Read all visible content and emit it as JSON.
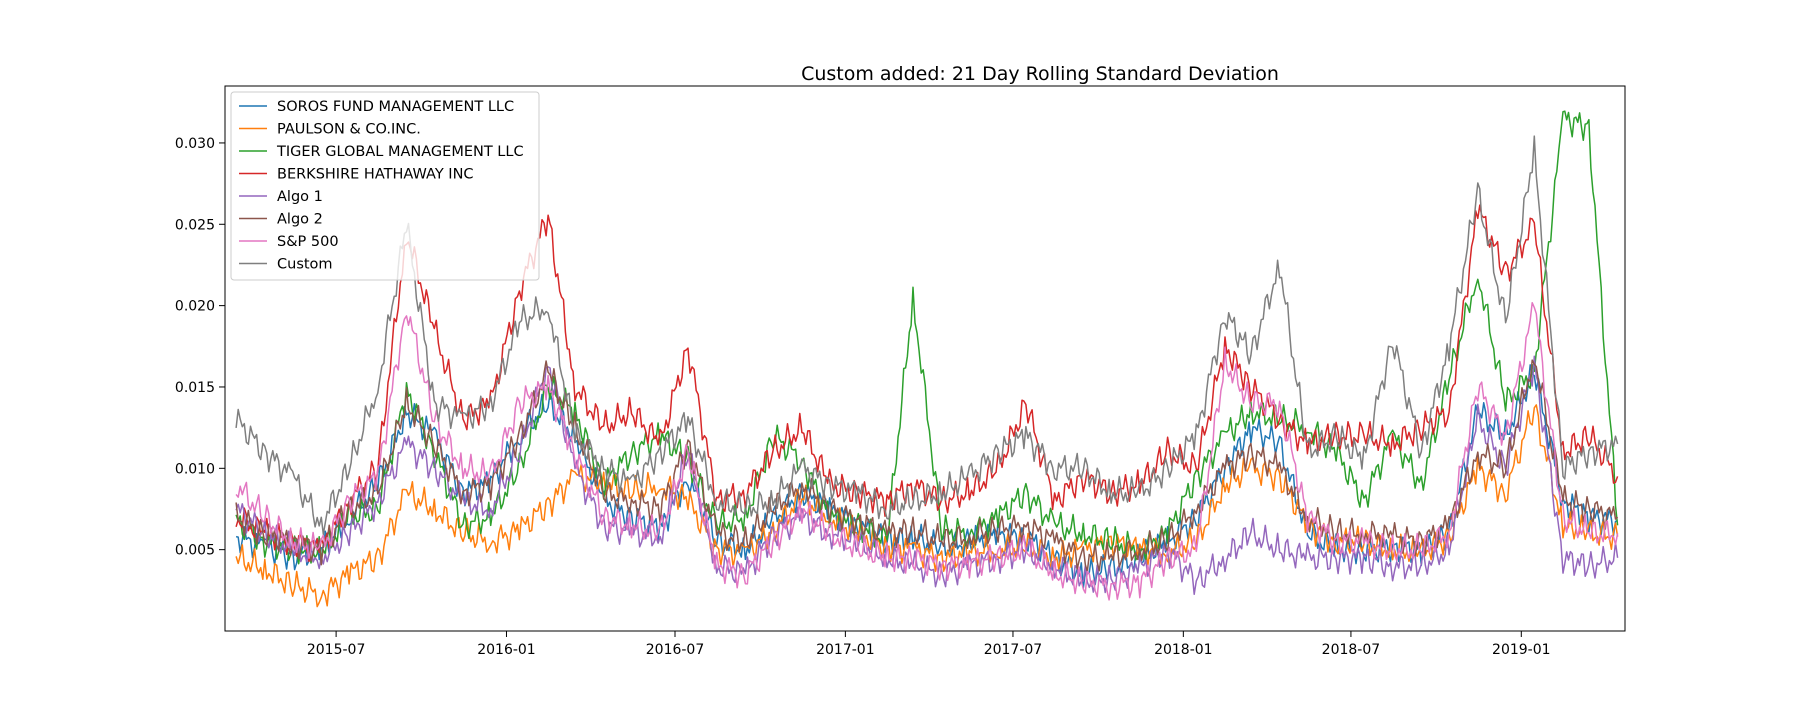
{
  "chart_data": {
    "type": "line",
    "title": "Custom added: 21 Day Rolling Standard Deviation",
    "xlabel": "",
    "ylabel": "",
    "x_range": [
      "2015-03-03",
      "2019-04-23"
    ],
    "ylim": [
      0.0,
      0.0335
    ],
    "x_ticks": [
      {
        "date": "2015-07-01",
        "label": "2015-07"
      },
      {
        "date": "2016-01-01",
        "label": "2016-01"
      },
      {
        "date": "2016-07-01",
        "label": "2016-07"
      },
      {
        "date": "2017-01-01",
        "label": "2017-01"
      },
      {
        "date": "2017-07-01",
        "label": "2017-07"
      },
      {
        "date": "2018-01-01",
        "label": "2018-01"
      },
      {
        "date": "2018-07-01",
        "label": "2018-07"
      },
      {
        "date": "2019-01-01",
        "label": "2019-01"
      }
    ],
    "y_ticks": [
      {
        "value": 0.005,
        "label": "0.005"
      },
      {
        "value": 0.01,
        "label": "0.010"
      },
      {
        "value": 0.015,
        "label": "0.015"
      },
      {
        "value": 0.02,
        "label": "0.020"
      },
      {
        "value": 0.025,
        "label": "0.025"
      },
      {
        "value": 0.03,
        "label": "0.030"
      }
    ],
    "grid": false,
    "legend_position": "top-left",
    "x": [
      "2015-03",
      "2015-04",
      "2015-05",
      "2015-06",
      "2015-07",
      "2015-08",
      "2015-09",
      "2015-10",
      "2015-11",
      "2015-12",
      "2016-01",
      "2016-02",
      "2016-03",
      "2016-04",
      "2016-05",
      "2016-06",
      "2016-07",
      "2016-08",
      "2016-09",
      "2016-10",
      "2016-11",
      "2016-12",
      "2017-01",
      "2017-02",
      "2017-03",
      "2017-04",
      "2017-05",
      "2017-06",
      "2017-07",
      "2017-08",
      "2017-09",
      "2017-10",
      "2017-11",
      "2017-12",
      "2018-01",
      "2018-02",
      "2018-03",
      "2018-04",
      "2018-05",
      "2018-06",
      "2018-07",
      "2018-08",
      "2018-09",
      "2018-10",
      "2018-11",
      "2018-12",
      "2019-01",
      "2019-02",
      "2019-03",
      "2019-04"
    ],
    "series": [
      {
        "name": "SOROS FUND MANAGEMENT LLC",
        "color": "#1f77b4",
        "values": [
          0.0058,
          0.0052,
          0.0046,
          0.005,
          0.007,
          0.009,
          0.0135,
          0.012,
          0.0085,
          0.0092,
          0.012,
          0.014,
          0.012,
          0.008,
          0.007,
          0.0062,
          0.0095,
          0.0055,
          0.005,
          0.0068,
          0.0085,
          0.0075,
          0.0065,
          0.0055,
          0.0058,
          0.005,
          0.0055,
          0.006,
          0.0058,
          0.0045,
          0.0035,
          0.0038,
          0.0045,
          0.0055,
          0.007,
          0.01,
          0.0125,
          0.0115,
          0.006,
          0.005,
          0.005,
          0.0052,
          0.005,
          0.006,
          0.0135,
          0.012,
          0.016,
          0.008,
          0.007,
          0.0068
        ]
      },
      {
        "name": "PAULSON & CO.INC.",
        "color": "#ff7f0e",
        "values": [
          0.0045,
          0.0038,
          0.0028,
          0.0022,
          0.0035,
          0.0045,
          0.0085,
          0.0075,
          0.006,
          0.0055,
          0.0062,
          0.0078,
          0.0095,
          0.0092,
          0.0085,
          0.009,
          0.008,
          0.005,
          0.0048,
          0.0062,
          0.0082,
          0.007,
          0.006,
          0.0052,
          0.005,
          0.0045,
          0.0048,
          0.005,
          0.0052,
          0.0045,
          0.005,
          0.0055,
          0.005,
          0.0048,
          0.0055,
          0.009,
          0.01,
          0.0095,
          0.0065,
          0.0055,
          0.0055,
          0.005,
          0.0048,
          0.0058,
          0.01,
          0.0085,
          0.0138,
          0.0065,
          0.006,
          0.0058
        ]
      },
      {
        "name": "TIGER GLOBAL MANAGEMENT LLC",
        "color": "#2ca02c",
        "values": [
          0.0068,
          0.0055,
          0.005,
          0.0048,
          0.007,
          0.0075,
          0.0148,
          0.011,
          0.0065,
          0.007,
          0.01,
          0.015,
          0.0135,
          0.009,
          0.011,
          0.012,
          0.0105,
          0.0065,
          0.007,
          0.012,
          0.0105,
          0.007,
          0.0065,
          0.0055,
          0.0205,
          0.0062,
          0.006,
          0.007,
          0.0085,
          0.0065,
          0.006,
          0.0055,
          0.005,
          0.006,
          0.0095,
          0.012,
          0.0135,
          0.013,
          0.0125,
          0.011,
          0.008,
          0.012,
          0.009,
          0.0155,
          0.022,
          0.014,
          0.016,
          0.0315,
          0.031,
          0.0065
        ]
      },
      {
        "name": "BERKSHIRE HATHAWAY INC",
        "color": "#d62728",
        "values": [
          0.007,
          0.006,
          0.0055,
          0.005,
          0.008,
          0.01,
          0.0245,
          0.0185,
          0.013,
          0.014,
          0.021,
          0.0255,
          0.015,
          0.0125,
          0.0135,
          0.0115,
          0.0175,
          0.008,
          0.0085,
          0.011,
          0.0125,
          0.009,
          0.0085,
          0.008,
          0.009,
          0.008,
          0.0085,
          0.01,
          0.014,
          0.008,
          0.0095,
          0.0085,
          0.009,
          0.011,
          0.01,
          0.0175,
          0.015,
          0.013,
          0.0115,
          0.012,
          0.012,
          0.0115,
          0.0125,
          0.0135,
          0.026,
          0.022,
          0.025,
          0.011,
          0.012,
          0.0095
        ]
      },
      {
        "name": "Algo 1",
        "color": "#9467bd",
        "values": [
          0.0075,
          0.006,
          0.005,
          0.0045,
          0.006,
          0.008,
          0.0115,
          0.01,
          0.008,
          0.0075,
          0.011,
          0.0165,
          0.01,
          0.0065,
          0.006,
          0.0058,
          0.011,
          0.004,
          0.0035,
          0.006,
          0.007,
          0.006,
          0.0055,
          0.0045,
          0.004,
          0.0035,
          0.004,
          0.0045,
          0.005,
          0.004,
          0.003,
          0.0032,
          0.0038,
          0.005,
          0.003,
          0.0045,
          0.006,
          0.005,
          0.0045,
          0.0045,
          0.0045,
          0.004,
          0.004,
          0.005,
          0.013,
          0.01,
          0.0165,
          0.0045,
          0.004,
          0.0045
        ]
      },
      {
        "name": "Algo 2",
        "color": "#8c564b",
        "values": [
          0.007,
          0.006,
          0.0055,
          0.005,
          0.0075,
          0.0085,
          0.014,
          0.0115,
          0.0085,
          0.009,
          0.012,
          0.016,
          0.0125,
          0.0085,
          0.008,
          0.0075,
          0.0115,
          0.006,
          0.0055,
          0.0075,
          0.009,
          0.0075,
          0.0068,
          0.006,
          0.0062,
          0.0055,
          0.0058,
          0.0062,
          0.0065,
          0.0055,
          0.0045,
          0.0045,
          0.005,
          0.0055,
          0.0075,
          0.01,
          0.011,
          0.01,
          0.007,
          0.006,
          0.006,
          0.0058,
          0.0055,
          0.0065,
          0.011,
          0.01,
          0.017,
          0.008,
          0.0075,
          0.007
        ]
      },
      {
        "name": "S&P 500",
        "color": "#e377c2",
        "values": [
          0.009,
          0.007,
          0.0055,
          0.005,
          0.008,
          0.0095,
          0.02,
          0.013,
          0.01,
          0.0095,
          0.014,
          0.015,
          0.011,
          0.007,
          0.0065,
          0.006,
          0.011,
          0.004,
          0.0035,
          0.0055,
          0.0075,
          0.006,
          0.005,
          0.0045,
          0.0045,
          0.004,
          0.0042,
          0.0045,
          0.005,
          0.0035,
          0.003,
          0.0028,
          0.003,
          0.0045,
          0.005,
          0.0165,
          0.014,
          0.014,
          0.007,
          0.0055,
          0.0055,
          0.005,
          0.005,
          0.006,
          0.015,
          0.012,
          0.02,
          0.007,
          0.006,
          0.006
        ]
      },
      {
        "name": "Custom",
        "color": "#7f7f7f",
        "values": [
          0.013,
          0.011,
          0.0095,
          0.0065,
          0.01,
          0.015,
          0.025,
          0.014,
          0.013,
          0.014,
          0.019,
          0.02,
          0.012,
          0.01,
          0.009,
          0.011,
          0.013,
          0.008,
          0.0075,
          0.008,
          0.01,
          0.009,
          0.0085,
          0.0075,
          0.008,
          0.0085,
          0.0095,
          0.011,
          0.012,
          0.01,
          0.01,
          0.0085,
          0.0085,
          0.01,
          0.012,
          0.0195,
          0.017,
          0.0225,
          0.011,
          0.012,
          0.0105,
          0.018,
          0.011,
          0.0175,
          0.027,
          0.019,
          0.0295,
          0.01,
          0.011,
          0.0115
        ]
      }
    ]
  }
}
